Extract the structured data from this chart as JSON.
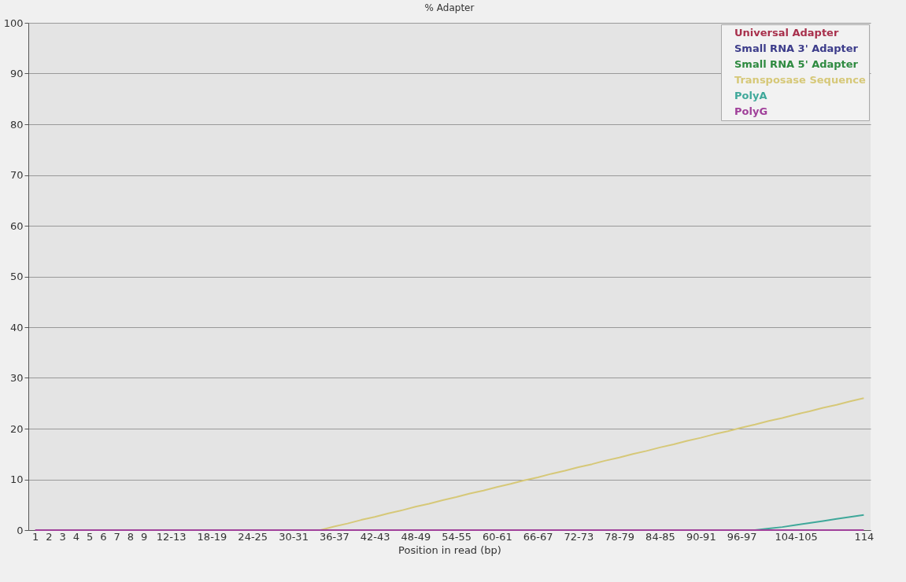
{
  "chart_data": {
    "type": "line",
    "title": "% Adapter",
    "xlabel": "Position in read (bp)",
    "categories": [
      "1",
      "2",
      "3",
      "4",
      "5",
      "6",
      "7",
      "8",
      "9",
      null,
      "12-13",
      null,
      null,
      "18-19",
      null,
      null,
      "24-25",
      null,
      null,
      "30-31",
      null,
      null,
      "36-37",
      null,
      null,
      "42-43",
      null,
      null,
      "48-49",
      null,
      null,
      "54-55",
      null,
      null,
      "60-61",
      null,
      null,
      "66-67",
      null,
      null,
      "72-73",
      null,
      null,
      "78-79",
      null,
      null,
      "84-85",
      null,
      null,
      "90-91",
      null,
      null,
      "96-97",
      null,
      null,
      null,
      "104-105",
      null,
      null,
      null,
      null,
      "114"
    ],
    "series": [
      {
        "name": "Universal Adapter",
        "color": "#a8304c",
        "values": [
          null,
          null,
          null,
          null,
          null,
          null,
          null,
          null,
          null,
          null,
          null,
          null,
          null,
          null,
          null,
          null,
          null,
          null,
          null,
          null,
          null,
          null,
          null,
          null,
          null,
          null,
          null,
          null,
          null,
          null,
          null,
          null,
          null,
          null,
          null,
          null,
          null,
          null,
          null,
          null,
          null,
          null,
          null,
          null,
          null,
          null,
          null,
          null,
          null,
          null,
          null,
          null,
          null,
          null,
          null,
          null,
          null,
          null,
          null,
          null,
          null,
          null
        ]
      },
      {
        "name": "Small RNA 3' Adapter",
        "color": "#3c3c8a",
        "values": [
          null,
          null,
          null,
          null,
          null,
          null,
          null,
          null,
          null,
          null,
          null,
          null,
          null,
          null,
          null,
          null,
          null,
          null,
          null,
          null,
          null,
          null,
          null,
          null,
          null,
          null,
          null,
          null,
          null,
          null,
          null,
          null,
          null,
          null,
          null,
          null,
          null,
          null,
          null,
          null,
          null,
          null,
          null,
          null,
          null,
          null,
          null,
          null,
          null,
          null,
          null,
          null,
          null,
          null,
          null,
          null,
          null,
          null,
          null,
          null,
          null,
          null
        ]
      },
      {
        "name": "Small RNA 5' Adapter",
        "color": "#2e8a40",
        "values": [
          null,
          null,
          null,
          null,
          null,
          null,
          null,
          null,
          null,
          null,
          null,
          null,
          null,
          null,
          null,
          null,
          null,
          null,
          null,
          null,
          null,
          null,
          null,
          null,
          null,
          null,
          null,
          null,
          null,
          null,
          null,
          null,
          null,
          null,
          null,
          null,
          null,
          null,
          null,
          null,
          null,
          null,
          null,
          null,
          null,
          null,
          null,
          null,
          null,
          null,
          null,
          null,
          null,
          null,
          null,
          null,
          null,
          null,
          null,
          null,
          null,
          null
        ]
      },
      {
        "name": "Transposase Sequence",
        "color": "#d6c878",
        "values": [
          null,
          null,
          null,
          null,
          null,
          null,
          null,
          null,
          null,
          null,
          null,
          null,
          null,
          null,
          null,
          null,
          null,
          null,
          null,
          null,
          null,
          0,
          0.7,
          1.3,
          2.0,
          2.6,
          3.3,
          3.9,
          4.6,
          5.2,
          5.9,
          6.5,
          7.2,
          7.8,
          8.5,
          9.1,
          9.8,
          10.4,
          11.1,
          11.7,
          12.4,
          13.0,
          13.7,
          14.3,
          15.0,
          15.6,
          16.3,
          16.9,
          17.6,
          18.2,
          18.9,
          19.5,
          20.2,
          20.8,
          21.5,
          22.1,
          22.8,
          23.4,
          24.1,
          24.7,
          25.4,
          26.0
        ]
      },
      {
        "name": "PolyA",
        "color": "#3fa89a",
        "values": [
          null,
          null,
          null,
          null,
          null,
          null,
          null,
          null,
          null,
          null,
          null,
          null,
          null,
          null,
          null,
          null,
          null,
          null,
          null,
          null,
          null,
          null,
          null,
          null,
          null,
          null,
          null,
          null,
          null,
          null,
          null,
          null,
          null,
          null,
          null,
          null,
          null,
          null,
          null,
          null,
          null,
          null,
          null,
          null,
          null,
          null,
          null,
          null,
          null,
          null,
          null,
          null,
          null,
          0,
          0.3,
          0.6,
          1.0,
          1.4,
          1.8,
          2.2,
          2.6,
          3.0
        ]
      },
      {
        "name": "PolyG",
        "color": "#a0409a",
        "values": [
          0,
          0,
          0,
          0,
          0,
          0,
          0,
          0,
          0,
          0,
          0,
          0,
          0,
          0,
          0,
          0,
          0,
          0,
          0,
          0,
          0,
          0,
          0,
          0,
          0,
          0,
          0,
          0,
          0,
          0,
          0,
          0,
          0,
          0,
          0,
          0,
          0,
          0,
          0,
          0,
          0,
          0,
          0,
          0,
          0,
          0,
          0,
          0,
          0,
          0,
          0,
          0,
          0,
          0,
          0,
          0,
          0,
          0,
          0,
          0,
          0,
          0
        ]
      }
    ],
    "ylim": [
      0,
      100
    ],
    "yticks": [
      0,
      10,
      20,
      30,
      40,
      50,
      60,
      70,
      80,
      90,
      100
    ],
    "grid": "y",
    "legend": "top right"
  }
}
